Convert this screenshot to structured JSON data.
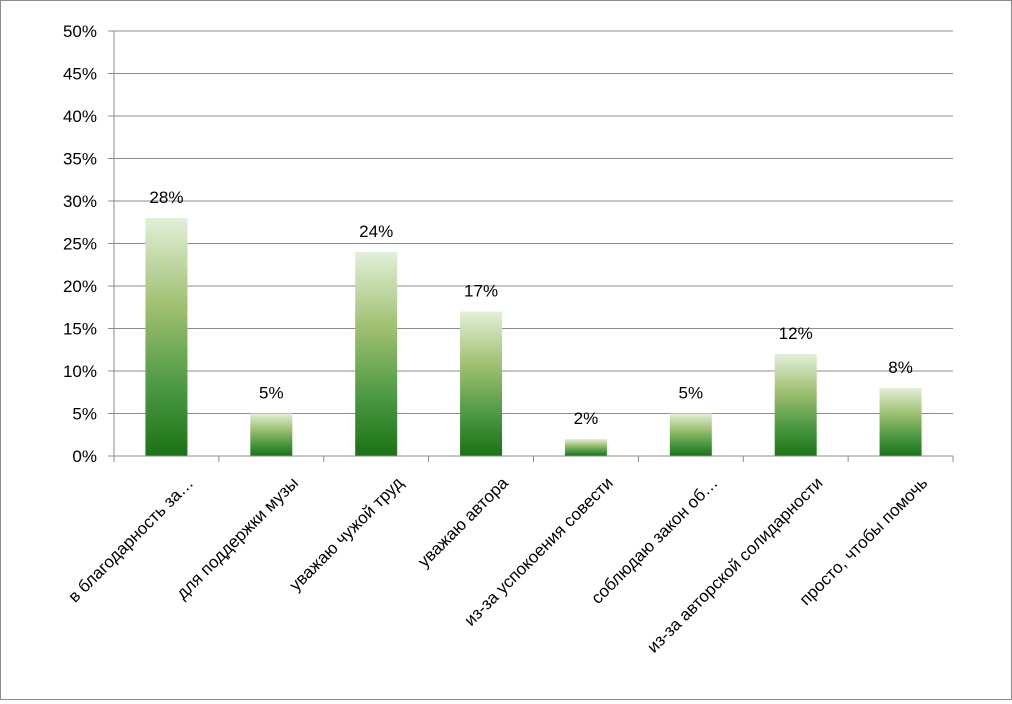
{
  "chart_data": {
    "type": "bar",
    "title": "",
    "xlabel": "",
    "ylabel": "",
    "ylim": [
      0,
      50
    ],
    "yticks": [
      "0%",
      "5%",
      "10%",
      "15%",
      "20%",
      "25%",
      "30%",
      "35%",
      "40%",
      "45%",
      "50%"
    ],
    "grid": true,
    "categories": [
      "в благодарность за…",
      "для поддержки музы",
      "уважаю чужой труд",
      "уважаю автора",
      "из-за успокоения совести",
      "соблюдаю закон об…",
      "из-за авторской солидарности",
      "просто, чтобы помочь"
    ],
    "values": [
      28,
      5,
      24,
      17,
      2,
      5,
      12,
      8
    ],
    "value_labels": [
      "28%",
      "5%",
      "24%",
      "17%",
      "2%",
      "5%",
      "12%",
      "8%"
    ],
    "bar_gradient": [
      "#e2efd8",
      "#9dbf6e",
      "#4e9a45",
      "#1a7314"
    ]
  }
}
